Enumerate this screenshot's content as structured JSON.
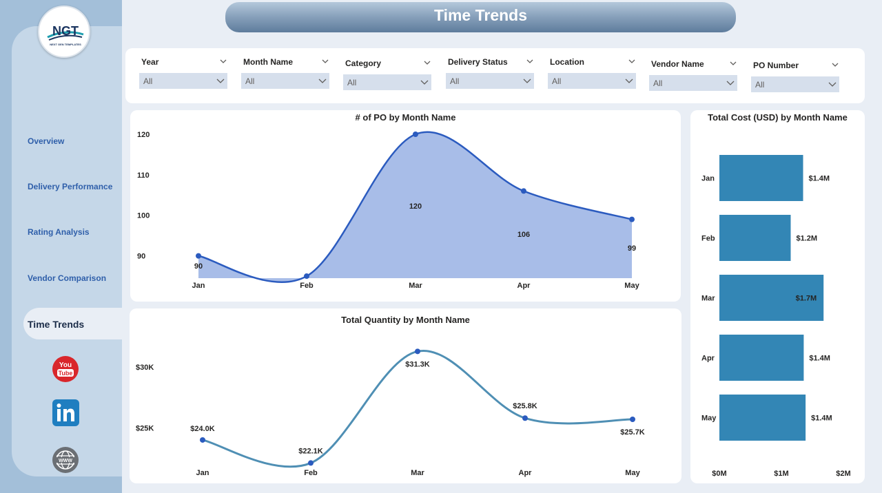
{
  "app": {
    "title": "Time Trends"
  },
  "logo": {
    "text": "NGT",
    "tagline": "NEXT GEN TEMPLATES"
  },
  "nav": {
    "items": [
      "Overview",
      "Delivery Performance",
      "Rating Analysis",
      "Vendor Comparison"
    ],
    "active": "Time Trends"
  },
  "social": [
    "youtube-icon",
    "linkedin-icon",
    "website-icon"
  ],
  "filters": [
    {
      "label": "Year",
      "value": "All"
    },
    {
      "label": "Month Name",
      "value": "All"
    },
    {
      "label": "Category",
      "value": "All"
    },
    {
      "label": "Delivery Status",
      "value": "All"
    },
    {
      "label": "Location",
      "value": "All"
    },
    {
      "label": "Vendor Name",
      "value": "All"
    },
    {
      "label": "PO Number",
      "value": "All"
    }
  ],
  "colors": {
    "area": "#a8bde8",
    "area_line": "#2b5bbf",
    "qty_line": "#4f8fb4",
    "bar": "#3386b5",
    "nav_text": "#2f5faa"
  },
  "chart_data": [
    {
      "id": "po-count",
      "type": "area",
      "title": "# of PO by Month Name",
      "categories": [
        "Jan",
        "Feb",
        "Mar",
        "Apr",
        "May"
      ],
      "values": [
        90,
        85,
        120,
        106,
        99
      ],
      "data_labels": [
        "90",
        "",
        "120",
        "106",
        "99"
      ],
      "yticks": [
        "90",
        "100",
        "110",
        "120"
      ],
      "ylim": [
        84.5,
        120
      ],
      "grid": false
    },
    {
      "id": "total-quantity",
      "type": "line",
      "title": "Total Quantity by Month Name",
      "categories": [
        "Jan",
        "Feb",
        "Mar",
        "Apr",
        "May"
      ],
      "values": [
        24000,
        22100,
        31300,
        25800,
        25700
      ],
      "data_labels": [
        "$24.0K",
        "$22.1K",
        "$31.3K",
        "$25.8K",
        "$25.7K"
      ],
      "yticks": [
        "$25K",
        "$30K"
      ],
      "ylim": [
        21500,
        32000
      ],
      "grid": false
    },
    {
      "id": "total-cost",
      "type": "bar",
      "orientation": "horizontal",
      "title": "Total Cost (USD) by Month Name",
      "categories": [
        "Jan",
        "Feb",
        "Mar",
        "Apr",
        "May"
      ],
      "values": [
        1.35,
        1.15,
        1.68,
        1.36,
        1.39
      ],
      "data_labels": [
        "$1.4M",
        "$1.2M",
        "$1.7M",
        "$1.4M",
        "$1.4M"
      ],
      "xticks": [
        "$0M",
        "$1M",
        "$2M"
      ],
      "xlim": [
        0,
        2
      ],
      "unit": "M USD",
      "grid": false
    }
  ]
}
